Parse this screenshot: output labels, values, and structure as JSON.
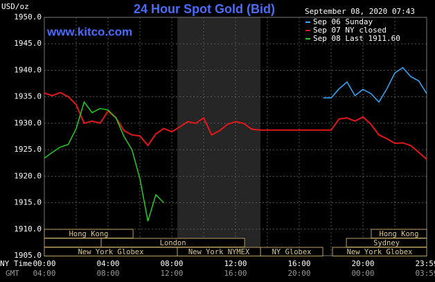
{
  "chart_data": {
    "type": "line",
    "title": "24 Hour Spot Gold (Bid)",
    "site": "www.kitco.com",
    "timestamp": "September 08, 2020 07:43",
    "y_unit": "USD/oz",
    "x_row_labels": [
      "NY Time",
      "GMT"
    ],
    "x": [
      0,
      0.5,
      1,
      1.5,
      2,
      2.5,
      3,
      3.5,
      4,
      4.5,
      5,
      5.5,
      6,
      6.5,
      7,
      7.5,
      8,
      8.5,
      9,
      9.5,
      10,
      10.5,
      11,
      11.5,
      12,
      12.5,
      13,
      13.5,
      14,
      14.5,
      15,
      15.5,
      16,
      16.5,
      17,
      17.5,
      18,
      18.5,
      19,
      19.5,
      20,
      20.5,
      21,
      21.5,
      22,
      22.5,
      23,
      23.5,
      24
    ],
    "series": [
      {
        "name": "Sep 06 Sunday",
        "color": "#33aaff",
        "values": [
          null,
          null,
          null,
          null,
          null,
          null,
          null,
          null,
          null,
          null,
          null,
          null,
          null,
          null,
          null,
          null,
          null,
          null,
          null,
          null,
          null,
          null,
          null,
          null,
          null,
          null,
          null,
          null,
          null,
          null,
          null,
          null,
          null,
          null,
          null,
          1934.8,
          1934.8,
          1936.5,
          1937.8,
          1935.2,
          1936.4,
          1935.6,
          1934.0,
          1936.5,
          1939.5,
          1940.5,
          1938.8,
          1938.0,
          1935.6
        ]
      },
      {
        "name": "Sep 07 NY closed",
        "color": "#e41818",
        "values": [
          1935.7,
          1935.2,
          1935.8,
          1935.0,
          1933.5,
          1930.0,
          1930.4,
          1930.0,
          1932.3,
          1931.0,
          1928.6,
          1927.8,
          1927.6,
          1925.8,
          1928.0,
          1929.0,
          1928.4,
          1929.3,
          1930.3,
          1930.0,
          1931.0,
          1927.8,
          1928.6,
          1929.8,
          1930.3,
          1930.0,
          1928.9,
          1928.7,
          1928.7,
          1928.7,
          1928.7,
          1928.7,
          1928.7,
          1928.7,
          1928.7,
          1928.7,
          1928.7,
          1930.8,
          1931.0,
          1930.4,
          1931.2,
          1929.8,
          1927.8,
          1927.1,
          1926.2,
          1926.3,
          1925.8,
          1924.5,
          1923.2
        ]
      },
      {
        "name": "Sep 08 Last 1911.60",
        "color": "#22cc22",
        "values": [
          1923.4,
          1924.5,
          1925.5,
          1926.0,
          1929.0,
          1934.0,
          1932.0,
          1932.8,
          1932.5,
          1931.0,
          1927.5,
          1925.0,
          1919.5,
          1911.5,
          1916.5,
          1915.0,
          null,
          null,
          null,
          null,
          null,
          null,
          null,
          null,
          null,
          null,
          null,
          null,
          null,
          null,
          null,
          null,
          null,
          null,
          null,
          null,
          null,
          null,
          null,
          null,
          null,
          null,
          null,
          null,
          null,
          null,
          null,
          null,
          null
        ]
      }
    ],
    "xlim": [
      0,
      24
    ],
    "xticks": [
      {
        "value": 0,
        "label": "00:00"
      },
      {
        "value": 4,
        "label": "04:00"
      },
      {
        "value": 8,
        "label": "08:00"
      },
      {
        "value": 12,
        "label": "12:00"
      },
      {
        "value": 16,
        "label": "16:00"
      },
      {
        "value": 20,
        "label": "20:00"
      },
      {
        "value": 24,
        "label": "23:59"
      }
    ],
    "gmt_labels": [
      "04:00",
      "08:00",
      "12:00",
      "16:00",
      "20:00",
      "00:00",
      "03:59"
    ],
    "xminor": [
      2,
      6,
      10,
      14,
      18,
      22
    ],
    "ylim": [
      1905,
      1950
    ],
    "yticks": [
      {
        "value": 1905,
        "label": "1905.0"
      },
      {
        "value": 1910,
        "label": "1910.0"
      },
      {
        "value": 1915,
        "label": "1915.0"
      },
      {
        "value": 1920,
        "label": "1920.0"
      },
      {
        "value": 1925,
        "label": "1925.0"
      },
      {
        "value": 1930,
        "label": "1930.0"
      },
      {
        "value": 1935,
        "label": "1935.0"
      },
      {
        "value": 1940,
        "label": "1940.0"
      },
      {
        "value": 1945,
        "label": "1945.0"
      },
      {
        "value": 1950,
        "label": "1950.0"
      }
    ],
    "grid": true,
    "nymex_hours": [
      8.35,
      13.57
    ],
    "session_rows": [
      [
        {
          "name": "Hong Kong",
          "start": 0,
          "end": 5.57
        },
        {
          "name": "Hong Kong",
          "start": 20.52,
          "end": 24
        }
      ],
      [
        {
          "name": null,
          "start": 0,
          "end": 3.57
        },
        {
          "name": "London",
          "start": 3.57,
          "end": 12.57
        },
        {
          "name": "Sydney",
          "start": 18.96,
          "end": 24
        }
      ],
      [
        {
          "name": "New York Globex",
          "start": 0,
          "end": 8.35
        },
        {
          "name": "New York NYMEX",
          "start": 8.35,
          "end": 13.57
        },
        {
          "name": "NY Globex",
          "start": 13.57,
          "end": 17.48
        },
        {
          "name": "New York Globex",
          "start": 18.09,
          "end": 24
        }
      ]
    ]
  }
}
